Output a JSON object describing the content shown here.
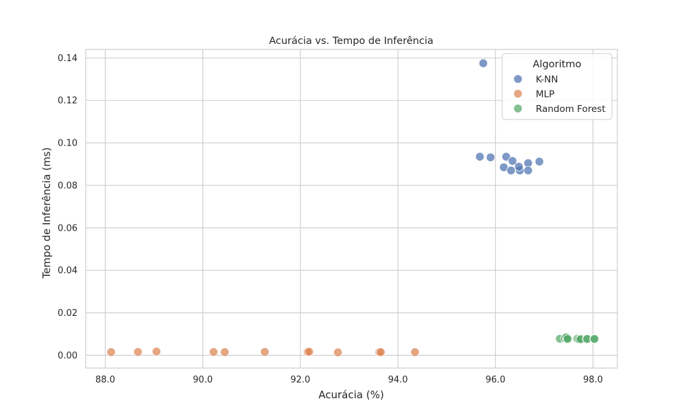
{
  "chart_data": {
    "type": "scatter",
    "title": "Acurácia vs. Tempo de Inferência",
    "xlabel": "Acurácia (%)",
    "ylabel": "Tempo de Inferência (ms)",
    "xlim": [
      87.6,
      98.5
    ],
    "ylim": [
      -0.006,
      0.144
    ],
    "xticks": [
      88.0,
      90.0,
      92.0,
      94.0,
      96.0,
      98.0
    ],
    "yticks": [
      0.0,
      0.02,
      0.04,
      0.06,
      0.08,
      0.1,
      0.12,
      0.14
    ],
    "grid": true,
    "legend": {
      "title": "Algoritmo",
      "placement": "top-right"
    },
    "series": [
      {
        "name": "K-NN",
        "color": "#4c72b0",
        "points": [
          [
            95.75,
            0.1375
          ],
          [
            95.68,
            0.0935
          ],
          [
            95.9,
            0.0932
          ],
          [
            96.22,
            0.0935
          ],
          [
            96.35,
            0.0915
          ],
          [
            96.17,
            0.0885
          ],
          [
            96.32,
            0.087
          ],
          [
            96.5,
            0.087
          ],
          [
            96.48,
            0.0888
          ],
          [
            96.67,
            0.0905
          ],
          [
            96.67,
            0.087
          ],
          [
            96.9,
            0.0912
          ]
        ]
      },
      {
        "name": "MLP",
        "color": "#dd8452",
        "points": [
          [
            88.12,
            0.0015
          ],
          [
            88.67,
            0.0016
          ],
          [
            89.05,
            0.0018
          ],
          [
            90.22,
            0.0016
          ],
          [
            90.45,
            0.0015
          ],
          [
            91.27,
            0.0016
          ],
          [
            92.15,
            0.0016
          ],
          [
            92.18,
            0.0017
          ],
          [
            92.77,
            0.0014
          ],
          [
            93.62,
            0.0015
          ],
          [
            93.65,
            0.0015
          ],
          [
            94.35,
            0.0015
          ]
        ]
      },
      {
        "name": "Random Forest",
        "color": "#55a868",
        "points": [
          [
            97.32,
            0.0078
          ],
          [
            97.42,
            0.008
          ],
          [
            97.45,
            0.0085
          ],
          [
            97.47,
            0.0075
          ],
          [
            97.48,
            0.0078
          ],
          [
            97.68,
            0.0078
          ],
          [
            97.72,
            0.0075
          ],
          [
            97.75,
            0.0076
          ],
          [
            97.87,
            0.0078
          ],
          [
            97.88,
            0.0077
          ],
          [
            98.02,
            0.0078
          ],
          [
            98.03,
            0.0077
          ]
        ]
      }
    ]
  }
}
